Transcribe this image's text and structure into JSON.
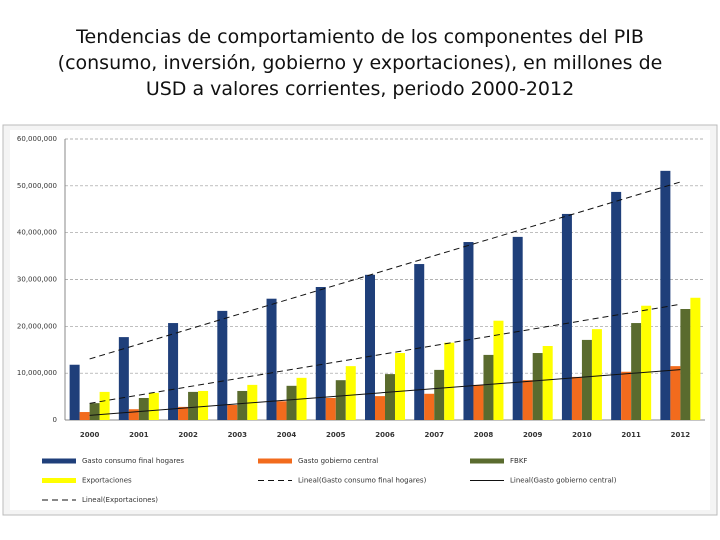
{
  "chart_data": {
    "type": "bar",
    "title": [
      "Tendencias de comportamiento de los componentes del PIB",
      "(consumo, inversión, gobierno y exportaciones), en millones de",
      "USD a valores corrientes, periodo 2000-2012"
    ],
    "categories": [
      "2000",
      "2001",
      "2002",
      "2003",
      "2004",
      "2005",
      "2006",
      "2007",
      "2008",
      "2009",
      "2010",
      "2011",
      "2012"
    ],
    "series": [
      {
        "name": "Gasto consumo final hogares",
        "color": "#1f3f7a",
        "values": [
          11800000,
          17700000,
          20700000,
          23300000,
          25900000,
          28400000,
          31000000,
          33300000,
          38000000,
          39100000,
          44000000,
          48700000,
          53200000
        ]
      },
      {
        "name": "Gasto gobierno central",
        "color": "#f26b1d",
        "values": [
          1700000,
          2300000,
          2800000,
          3200000,
          4000000,
          4700000,
          5100000,
          5600000,
          7500000,
          8500000,
          9200000,
          10300000,
          11500000
        ]
      },
      {
        "name": "FBKF",
        "color": "#5a6b2e",
        "values": [
          3600000,
          4700000,
          6000000,
          6200000,
          7300000,
          8500000,
          9800000,
          10700000,
          13900000,
          14300000,
          17100000,
          20700000,
          23700000
        ]
      },
      {
        "name": "Exportaciones",
        "color": "#ffff00",
        "values": [
          6000000,
          5800000,
          6200000,
          7500000,
          9000000,
          11500000,
          14300000,
          16500000,
          21200000,
          15800000,
          19400000,
          24400000,
          26100000
        ]
      }
    ],
    "trendlines": [
      {
        "name": "Lineal(Gasto consumo final hogares)",
        "series": 0,
        "dashed": true
      },
      {
        "name": "Lineal(Gasto gobierno central)",
        "series": 1,
        "dashed": false
      },
      {
        "name": "Lineal(Exportaciones)",
        "series": 3,
        "dashed": true
      }
    ],
    "ylim": [
      0,
      60000000
    ],
    "yticks": [
      0,
      {
        "value": 10000000,
        "label": "10,000,000"
      },
      {
        "value": 20000000,
        "label": "20,000,000"
      },
      {
        "value": 30000000,
        "label": "30,000,000"
      },
      {
        "value": 40000000,
        "label": "40,000,000"
      },
      {
        "value": 50000000,
        "label": "50,000,000"
      },
      {
        "value": 60000000,
        "label": "60,000,000"
      }
    ],
    "grid": true
  }
}
